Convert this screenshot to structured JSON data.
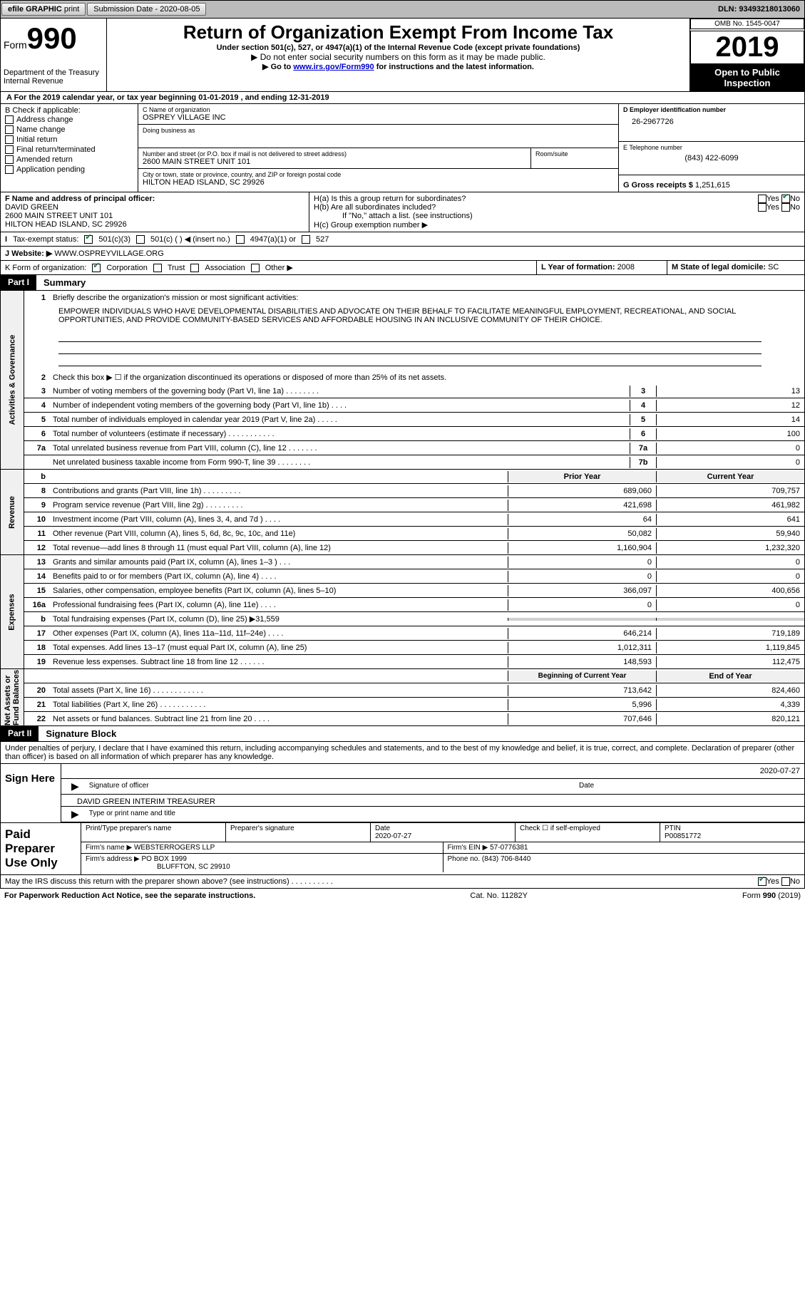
{
  "topbar": {
    "efile": "efile GRAPHIC",
    "print": "print",
    "sub_label": "Submission Date - ",
    "sub_date": "2020-08-05",
    "dln_label": "DLN: ",
    "dln": "93493218013060"
  },
  "hdr": {
    "form_word": "Form",
    "form_num": "990",
    "dept": "Department of the Treasury\nInternal Revenue",
    "title": "Return of Organization Exempt From Income Tax",
    "sub": "Under section 501(c), 527, or 4947(a)(1) of the Internal Revenue Code (except private foundations)",
    "bullet1": "▶ Do not enter social security numbers on this form as it may be made public.",
    "bullet2a": "▶ Go to ",
    "bullet2_link": "www.irs.gov/Form990",
    "bullet2b": " for instructions and the latest information.",
    "omb": "OMB No. 1545-0047",
    "year": "2019",
    "insp": "Open to Public Inspection"
  },
  "period": {
    "line": "A For the 2019 calendar year, or tax year beginning ",
    "start": "01-01-2019",
    "mid": " , and ending ",
    "end": "12-31-2019"
  },
  "boxB": {
    "label": "B Check if applicable:",
    "items": [
      "Address change",
      "Name change",
      "Initial return",
      "Final return/terminated",
      "Amended return",
      "Application pending"
    ]
  },
  "boxC": {
    "name_label": "C Name of organization",
    "name": "OSPREY VILLAGE INC",
    "dba_label": "Doing business as",
    "dba": "",
    "addr_label": "Number and street (or P.O. box if mail is not delivered to street address)",
    "room_label": "Room/suite",
    "addr": "2600 MAIN STREET UNIT 101",
    "city_label": "City or town, state or province, country, and ZIP or foreign postal code",
    "city": "HILTON HEAD ISLAND, SC  29926"
  },
  "boxD": {
    "label": "D Employer identification number",
    "ein": "26-2967726"
  },
  "boxE": {
    "label": "E Telephone number",
    "phone": "(843) 422-6099"
  },
  "boxG": {
    "label": "G Gross receipts $ ",
    "val": "1,251,615"
  },
  "boxF": {
    "label": "F  Name and address of principal officer:",
    "name": "DAVID GREEN",
    "addr1": "2600 MAIN STREET UNIT 101",
    "addr2": "HILTON HEAD ISLAND, SC  29926"
  },
  "boxH": {
    "a": "H(a)  Is this a group return for subordinates?",
    "b": "H(b)  Are all subordinates included?",
    "note": "If \"No,\" attach a list. (see instructions)",
    "c": "H(c)  Group exemption number ▶",
    "yes": "Yes",
    "no": "No"
  },
  "taxex": {
    "label": "Tax-exempt status:",
    "c3": "501(c)(3)",
    "c": "501(c) (  ) ◀ (insert no.)",
    "a": "4947(a)(1) or",
    "s": "527"
  },
  "web": {
    "label": "J    Website: ▶",
    "val": "WWW.OSPREYVILLAGE.ORG"
  },
  "boxK": {
    "label": "K Form of organization:",
    "corp": "Corporation",
    "trust": "Trust",
    "assoc": "Association",
    "other": "Other ▶"
  },
  "boxL": {
    "label": "L Year of formation: ",
    "val": "2008"
  },
  "boxM": {
    "label": "M State of legal domicile: ",
    "val": "SC"
  },
  "part1": {
    "pl": "Part I",
    "pt": "Summary"
  },
  "p1": {
    "l1": "Briefly describe the organization's mission or most significant activities:",
    "mission": "EMPOWER INDIVIDUALS WHO HAVE DEVELOPMENTAL DISABILITIES AND ADVOCATE ON THEIR BEHALF TO FACILITATE MEANINGFUL EMPLOYMENT, RECREATIONAL, AND SOCIAL OPPORTUNITIES, AND PROVIDE COMMUNITY-BASED SERVICES AND AFFORDABLE HOUSING IN AN INCLUSIVE COMMUNITY OF THEIR CHOICE.",
    "l2": "Check this box ▶ ☐  if the organization discontinued its operations or disposed of more than 25% of its net assets.",
    "rows": [
      {
        "n": "3",
        "d": "Number of voting members of the governing body (Part VI, line 1a)  .    .    .    .    .    .    .    .",
        "b": "3",
        "v": "13"
      },
      {
        "n": "4",
        "d": "Number of independent voting members of the governing body (Part VI, line 1b)   .    .    .    .",
        "b": "4",
        "v": "12"
      },
      {
        "n": "5",
        "d": "Total number of individuals employed in calendar year 2019 (Part V, line 2a)   .    .    .    .    .",
        "b": "5",
        "v": "14"
      },
      {
        "n": "6",
        "d": "Total number of volunteers (estimate if necessary)    .    .    .    .    .    .    .    .    .    .    .",
        "b": "6",
        "v": "100"
      },
      {
        "n": "7a",
        "d": "Total unrelated business revenue from Part VIII, column (C), line 12   .    .    .    .    .    .    .",
        "b": "7a",
        "v": "0"
      },
      {
        "n": "",
        "d": "Net unrelated business taxable income from Form 990-T, line 39    .    .    .    .    .    .    .    .",
        "b": "7b",
        "v": "0"
      }
    ]
  },
  "rev": {
    "hdr": {
      "prior": "Prior Year",
      "curr": "Current Year"
    },
    "rows": [
      {
        "n": "8",
        "d": "Contributions and grants (Part VIII, line 1h)   .    .    .    .    .    .    .    .    .",
        "p": "689,060",
        "c": "709,757"
      },
      {
        "n": "9",
        "d": "Program service revenue (Part VIII, line 2g)    .    .    .    .    .    .    .    .    .",
        "p": "421,698",
        "c": "461,982"
      },
      {
        "n": "10",
        "d": "Investment income (Part VIII, column (A), lines 3, 4, and 7d )   .    .    .    .",
        "p": "64",
        "c": "641"
      },
      {
        "n": "11",
        "d": "Other revenue (Part VIII, column (A), lines 5, 6d, 8c, 9c, 10c, and 11e)",
        "p": "50,082",
        "c": "59,940"
      },
      {
        "n": "12",
        "d": "Total revenue—add lines 8 through 11 (must equal Part VIII, column (A), line 12)",
        "p": "1,160,904",
        "c": "1,232,320"
      }
    ]
  },
  "exp": {
    "rows": [
      {
        "n": "13",
        "d": "Grants and similar amounts paid (Part IX, column (A), lines 1–3 )  .    .    .",
        "p": "0",
        "c": "0"
      },
      {
        "n": "14",
        "d": "Benefits paid to or for members (Part IX, column (A), line 4)  .    .    .    .",
        "p": "0",
        "c": "0"
      },
      {
        "n": "15",
        "d": "Salaries, other compensation, employee benefits (Part IX, column (A), lines 5–10)",
        "p": "366,097",
        "c": "400,656"
      },
      {
        "n": "16a",
        "d": "Professional fundraising fees (Part IX, column (A), line 11e)   .    .    .    .",
        "p": "0",
        "c": "0"
      },
      {
        "n": "b",
        "d": "Total fundraising expenses (Part IX, column (D), line 25) ▶31,559",
        "p": "",
        "c": "",
        "gray": true
      },
      {
        "n": "17",
        "d": "Other expenses (Part IX, column (A), lines 11a–11d, 11f–24e)  .    .    .    .",
        "p": "646,214",
        "c": "719,189"
      },
      {
        "n": "18",
        "d": "Total expenses. Add lines 13–17 (must equal Part IX, column (A), line 25)",
        "p": "1,012,311",
        "c": "1,119,845"
      },
      {
        "n": "19",
        "d": "Revenue less expenses. Subtract line 18 from line 12   .    .    .    .    .    .",
        "p": "148,593",
        "c": "112,475"
      }
    ]
  },
  "net": {
    "hdr": {
      "prior": "Beginning of Current Year",
      "curr": "End of Year"
    },
    "rows": [
      {
        "n": "20",
        "d": "Total assets (Part X, line 16)  .    .    .    .    .    .    .    .    .    .    .    .",
        "p": "713,642",
        "c": "824,460"
      },
      {
        "n": "21",
        "d": "Total liabilities (Part X, line 26)  .    .    .    .    .    .    .    .    .    .    .",
        "p": "5,996",
        "c": "4,339"
      },
      {
        "n": "22",
        "d": "Net assets or fund balances. Subtract line 21 from line 20   .    .    .    .",
        "p": "707,646",
        "c": "820,121"
      }
    ]
  },
  "part2": {
    "pl": "Part II",
    "pt": "Signature Block"
  },
  "sig": {
    "decl": "Under penalties of perjury, I declare that I have examined this return, including accompanying schedules and statements, and to the best of my knowledge and belief, it is true, correct, and complete. Declaration of preparer (other than officer) is based on all information of which preparer has any knowledge.",
    "sign_label": "Sign Here",
    "sig_of": "Signature of officer",
    "date_label": "Date",
    "date": "2020-07-27",
    "name": "DAVID GREEN  INTERIM TREASURER",
    "name_label": "Type or print name and title"
  },
  "prep": {
    "label": "Paid Preparer Use Only",
    "h": [
      "Print/Type preparer's name",
      "Preparer's signature",
      "Date",
      "Check ☐ if self-employed",
      "PTIN"
    ],
    "date": "2020-07-27",
    "ptin": "P00851772",
    "firm_label": "Firm's name    ▶",
    "firm": "WEBSTERROGERS LLP",
    "ein_label": "Firm's EIN ▶",
    "ein": "57-0776381",
    "addr_label": "Firm's address ▶",
    "addr1": "PO BOX 1999",
    "addr2": "BLUFFTON, SC  29910",
    "phone_label": "Phone no. ",
    "phone": "(843) 706-8440"
  },
  "discuss": {
    "q": "May the IRS discuss this return with the preparer shown above? (see instructions)   .    .    .    .    .    .    .    .    .    .",
    "yes": "Yes",
    "no": "No"
  },
  "foot": {
    "l": "For Paperwork Reduction Act Notice, see the separate instructions.",
    "c": "Cat. No. 11282Y",
    "r": "Form 990 (2019)"
  }
}
